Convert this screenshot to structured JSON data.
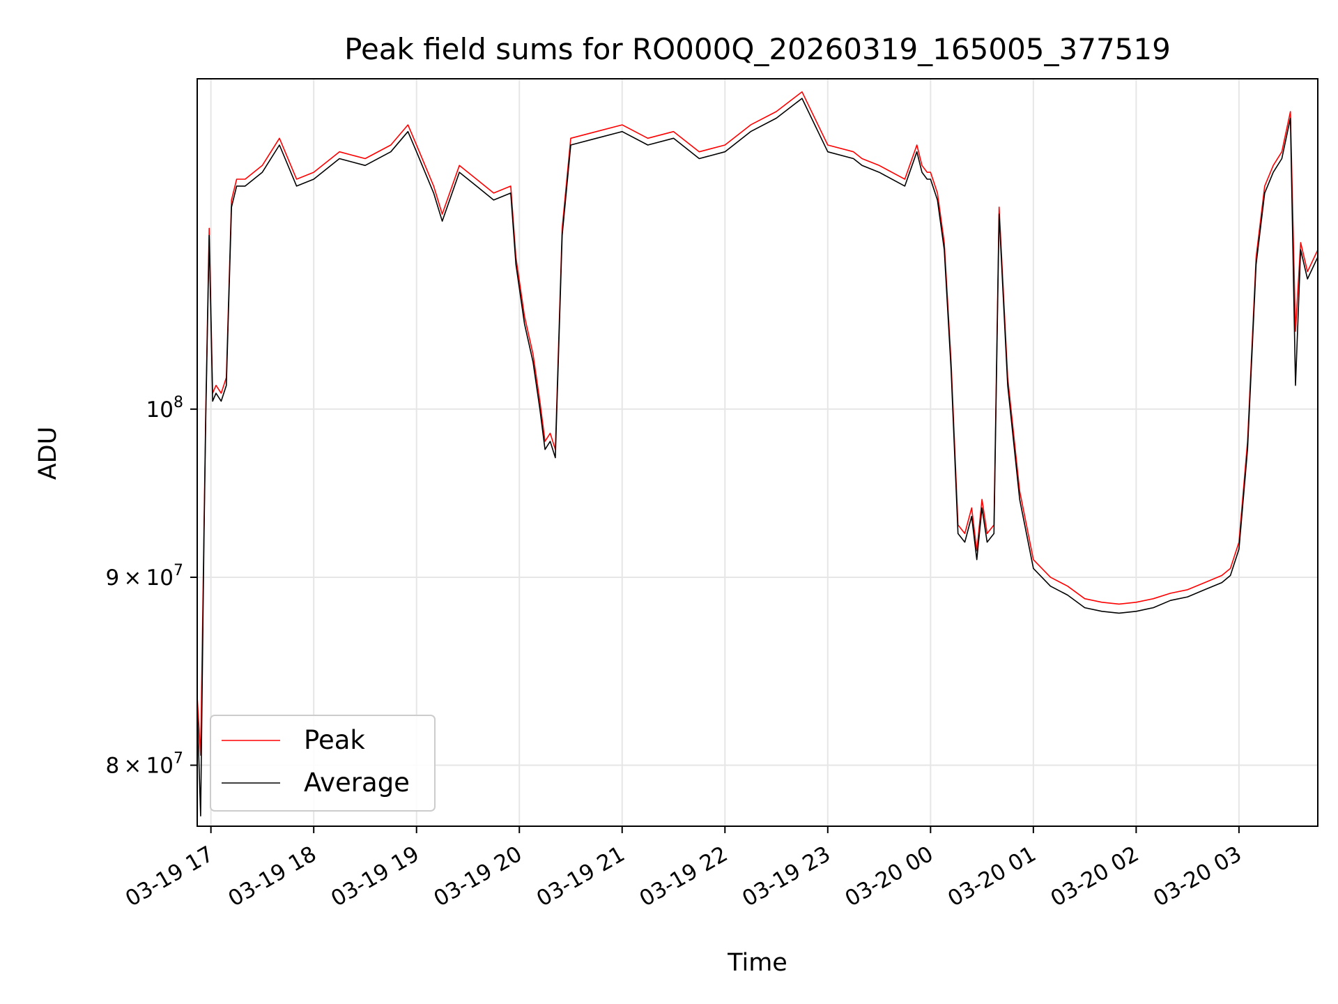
{
  "chart_data": {
    "type": "line",
    "title": "Peak field sums for RO000Q_20260319_165005_377519",
    "xlabel": "Time",
    "ylabel": "ADU",
    "y_scale": "log",
    "ylim": [
      77000000,
      123000000
    ],
    "y_ticks": [
      {
        "value": 80000000,
        "mantissa": "8",
        "exp": "7"
      },
      {
        "value": 90000000,
        "mantissa": "9",
        "exp": "7"
      },
      {
        "value": 100000000,
        "mantissa": "",
        "exp": "8"
      }
    ],
    "x_range": [
      "2026-03-19 16:52",
      "2026-03-20 03:46"
    ],
    "x_ticks": [
      "03-19 17",
      "03-19 18",
      "03-19 19",
      "03-19 20",
      "03-19 21",
      "03-19 22",
      "03-19 23",
      "03-20 00",
      "03-20 01",
      "03-20 02",
      "03-20 03"
    ],
    "grid": true,
    "legend_position": "bottom-left",
    "series": [
      {
        "name": "Peak",
        "color": "#ff0000",
        "x": [
          "2026-03-19 16:52",
          "2026-03-19 16:54",
          "2026-03-19 16:56",
          "2026-03-19 16:57",
          "2026-03-19 16:59",
          "2026-03-19 17:01",
          "2026-03-19 17:03",
          "2026-03-19 17:06",
          "2026-03-19 17:09",
          "2026-03-19 17:12",
          "2026-03-19 17:15",
          "2026-03-19 17:20",
          "2026-03-19 17:30",
          "2026-03-19 17:40",
          "2026-03-19 17:50",
          "2026-03-19 18:00",
          "2026-03-19 18:15",
          "2026-03-19 18:30",
          "2026-03-19 18:45",
          "2026-03-19 18:55",
          "2026-03-19 19:00",
          "2026-03-19 19:10",
          "2026-03-19 19:15",
          "2026-03-19 19:25",
          "2026-03-19 19:35",
          "2026-03-19 19:45",
          "2026-03-19 19:55",
          "2026-03-19 19:58",
          "2026-03-19 20:03",
          "2026-03-19 20:08",
          "2026-03-19 20:12",
          "2026-03-19 20:15",
          "2026-03-19 20:18",
          "2026-03-19 20:21",
          "2026-03-19 20:25",
          "2026-03-19 20:30",
          "2026-03-19 20:45",
          "2026-03-19 21:00",
          "2026-03-19 21:15",
          "2026-03-19 21:30",
          "2026-03-19 21:45",
          "2026-03-19 22:00",
          "2026-03-19 22:15",
          "2026-03-19 22:30",
          "2026-03-19 22:45",
          "2026-03-19 23:00",
          "2026-03-19 23:15",
          "2026-03-19 23:20",
          "2026-03-19 23:30",
          "2026-03-19 23:45",
          "2026-03-19 23:52",
          "2026-03-19 23:55",
          "2026-03-19 23:58",
          "2026-03-20 00:00",
          "2026-03-20 00:04",
          "2026-03-20 00:08",
          "2026-03-20 00:12",
          "2026-03-20 00:16",
          "2026-03-20 00:20",
          "2026-03-20 00:24",
          "2026-03-20 00:27",
          "2026-03-20 00:30",
          "2026-03-20 00:33",
          "2026-03-20 00:37",
          "2026-03-20 00:40",
          "2026-03-20 00:45",
          "2026-03-20 00:52",
          "2026-03-20 01:00",
          "2026-03-20 01:10",
          "2026-03-20 01:20",
          "2026-03-20 01:30",
          "2026-03-20 01:40",
          "2026-03-20 01:50",
          "2026-03-20 02:00",
          "2026-03-20 02:10",
          "2026-03-20 02:20",
          "2026-03-20 02:30",
          "2026-03-20 02:40",
          "2026-03-20 02:50",
          "2026-03-20 02:55",
          "2026-03-20 03:00",
          "2026-03-20 03:05",
          "2026-03-20 03:10",
          "2026-03-20 03:15",
          "2026-03-20 03:20",
          "2026-03-20 03:25",
          "2026-03-20 03:30",
          "2026-03-20 03:33",
          "2026-03-20 03:36",
          "2026-03-20 03:40",
          "2026-03-20 03:46"
        ],
        "values": [
          83500000,
          80500000,
          93000000,
          100000000,
          112000000,
          101000000,
          101500000,
          101000000,
          102000000,
          114000000,
          115500000,
          115500000,
          116500000,
          118500000,
          115500000,
          116000000,
          117500000,
          117000000,
          118000000,
          119500000,
          118000000,
          115000000,
          113000000,
          116500000,
          115500000,
          114500000,
          115000000,
          110000000,
          106000000,
          103500000,
          100500000,
          98000000,
          98500000,
          97500000,
          112000000,
          118500000,
          119000000,
          119500000,
          118500000,
          119000000,
          117500000,
          118000000,
          119500000,
          120500000,
          122000000,
          118000000,
          117500000,
          117000000,
          116500000,
          115500000,
          118000000,
          116500000,
          116000000,
          116000000,
          114500000,
          111000000,
          103000000,
          93000000,
          92500000,
          94000000,
          91500000,
          94500000,
          92500000,
          93000000,
          113500000,
          102000000,
          95000000,
          91000000,
          90000000,
          89500000,
          88800000,
          88600000,
          88500000,
          88600000,
          88800000,
          89100000,
          89300000,
          89700000,
          90100000,
          90500000,
          92000000,
          98000000,
          110000000,
          115000000,
          116500000,
          117500000,
          120500000,
          105000000,
          111000000,
          109000000,
          110500000
        ]
      },
      {
        "name": "Average",
        "color": "#000000",
        "x": [
          "2026-03-19 16:52",
          "2026-03-19 16:54",
          "2026-03-19 16:56",
          "2026-03-19 16:57",
          "2026-03-19 16:59",
          "2026-03-19 17:01",
          "2026-03-19 17:03",
          "2026-03-19 17:06",
          "2026-03-19 17:09",
          "2026-03-19 17:12",
          "2026-03-19 17:15",
          "2026-03-19 17:20",
          "2026-03-19 17:30",
          "2026-03-19 17:40",
          "2026-03-19 17:50",
          "2026-03-19 18:00",
          "2026-03-19 18:15",
          "2026-03-19 18:30",
          "2026-03-19 18:45",
          "2026-03-19 18:55",
          "2026-03-19 19:00",
          "2026-03-19 19:10",
          "2026-03-19 19:15",
          "2026-03-19 19:25",
          "2026-03-19 19:35",
          "2026-03-19 19:45",
          "2026-03-19 19:55",
          "2026-03-19 19:58",
          "2026-03-19 20:03",
          "2026-03-19 20:08",
          "2026-03-19 20:12",
          "2026-03-19 20:15",
          "2026-03-19 20:18",
          "2026-03-19 20:21",
          "2026-03-19 20:25",
          "2026-03-19 20:30",
          "2026-03-19 20:45",
          "2026-03-19 21:00",
          "2026-03-19 21:15",
          "2026-03-19 21:30",
          "2026-03-19 21:45",
          "2026-03-19 22:00",
          "2026-03-19 22:15",
          "2026-03-19 22:30",
          "2026-03-19 22:45",
          "2026-03-19 23:00",
          "2026-03-19 23:15",
          "2026-03-19 23:20",
          "2026-03-19 23:30",
          "2026-03-19 23:45",
          "2026-03-19 23:52",
          "2026-03-19 23:55",
          "2026-03-19 23:58",
          "2026-03-20 00:00",
          "2026-03-20 00:04",
          "2026-03-20 00:08",
          "2026-03-20 00:12",
          "2026-03-20 00:16",
          "2026-03-20 00:20",
          "2026-03-20 00:24",
          "2026-03-20 00:27",
          "2026-03-20 00:30",
          "2026-03-20 00:33",
          "2026-03-20 00:37",
          "2026-03-20 00:40",
          "2026-03-20 00:45",
          "2026-03-20 00:52",
          "2026-03-20 01:00",
          "2026-03-20 01:10",
          "2026-03-20 01:20",
          "2026-03-20 01:30",
          "2026-03-20 01:40",
          "2026-03-20 01:50",
          "2026-03-20 02:00",
          "2026-03-20 02:10",
          "2026-03-20 02:20",
          "2026-03-20 02:30",
          "2026-03-20 02:40",
          "2026-03-20 02:50",
          "2026-03-20 02:55",
          "2026-03-20 03:00",
          "2026-03-20 03:05",
          "2026-03-20 03:10",
          "2026-03-20 03:15",
          "2026-03-20 03:20",
          "2026-03-20 03:25",
          "2026-03-20 03:30",
          "2026-03-20 03:33",
          "2026-03-20 03:36",
          "2026-03-20 03:40",
          "2026-03-20 03:46"
        ],
        "values": [
          83000000,
          77500000,
          92500000,
          99500000,
          111500000,
          100500000,
          101000000,
          100500000,
          101500000,
          113500000,
          115000000,
          115000000,
          116000000,
          118000000,
          115000000,
          115500000,
          117000000,
          116500000,
          117500000,
          119000000,
          117500000,
          114500000,
          112500000,
          116000000,
          115000000,
          114000000,
          114500000,
          109500000,
          105500000,
          103000000,
          100000000,
          97500000,
          98000000,
          97000000,
          111500000,
          118000000,
          118500000,
          119000000,
          118000000,
          118500000,
          117000000,
          117500000,
          119000000,
          120000000,
          121500000,
          117500000,
          117000000,
          116500000,
          116000000,
          115000000,
          117500000,
          116000000,
          115500000,
          115500000,
          114000000,
          110500000,
          102500000,
          92500000,
          92000000,
          93500000,
          91000000,
          94000000,
          92000000,
          92500000,
          113000000,
          101500000,
          94500000,
          90500000,
          89500000,
          89000000,
          88300000,
          88100000,
          88000000,
          88100000,
          88300000,
          88700000,
          88900000,
          89300000,
          89700000,
          90100000,
          91600000,
          97500000,
          109500000,
          114500000,
          116000000,
          117000000,
          120000000,
          101500000,
          110500000,
          108500000,
          110000000
        ]
      }
    ]
  }
}
